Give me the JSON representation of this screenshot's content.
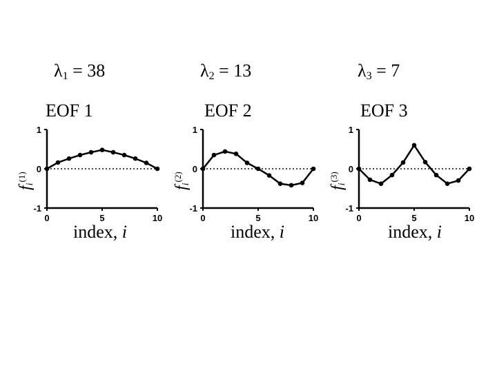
{
  "panels": [
    {
      "lambda_sym": "λ",
      "lambda_sub": "1",
      "lambda_rest": " = 38",
      "title": "EOF 1",
      "ylabel": {
        "f": "f",
        "i": "i",
        "sup": "(1)"
      },
      "xlabel": {
        "text": "index, ",
        "var": "i"
      }
    },
    {
      "lambda_sym": "λ",
      "lambda_sub": "2",
      "lambda_rest": " = 13",
      "title": "EOF 2",
      "ylabel": {
        "f": "f",
        "i": "i",
        "sup": "(2)"
      },
      "xlabel": {
        "text": "index, ",
        "var": "i"
      }
    },
    {
      "lambda_sym": "λ",
      "lambda_sub": "3",
      "lambda_rest": " = 7",
      "title": "EOF 3",
      "ylabel": {
        "f": "f",
        "i": "i",
        "sup": "(3)"
      },
      "xlabel": {
        "text": "index, ",
        "var": "i"
      }
    }
  ],
  "chart_data": [
    {
      "type": "line",
      "x": [
        0,
        1,
        2,
        3,
        4,
        5,
        6,
        7,
        8,
        9,
        10
      ],
      "y": [
        0.0,
        0.16,
        0.26,
        0.35,
        0.42,
        0.48,
        0.42,
        0.35,
        0.26,
        0.15,
        0.0
      ],
      "xlim": [
        0,
        10
      ],
      "ylim": [
        -1,
        1
      ],
      "xticks": [
        "0",
        "5",
        "10"
      ],
      "yticks": [
        "-1",
        "0",
        "1"
      ],
      "zero_line": "dotted"
    },
    {
      "type": "line",
      "x": [
        0,
        1,
        2,
        3,
        4,
        5,
        6,
        7,
        8,
        9,
        10
      ],
      "y": [
        0.0,
        0.35,
        0.44,
        0.38,
        0.15,
        0.0,
        -0.17,
        -0.38,
        -0.42,
        -0.36,
        0.0
      ],
      "xlim": [
        0,
        10
      ],
      "ylim": [
        -1,
        1
      ],
      "xticks": [
        "0",
        "5",
        "10"
      ],
      "yticks": [
        "-1",
        "0",
        "1"
      ],
      "zero_line": "dotted"
    },
    {
      "type": "line",
      "x": [
        0,
        1,
        2,
        3,
        4,
        5,
        6,
        7,
        8,
        9,
        10
      ],
      "y": [
        0.0,
        -0.28,
        -0.38,
        -0.16,
        0.16,
        0.6,
        0.17,
        -0.16,
        -0.38,
        -0.3,
        0.0
      ],
      "xlim": [
        0,
        10
      ],
      "ylim": [
        -1,
        1
      ],
      "xticks": [
        "0",
        "5",
        "10"
      ],
      "yticks": [
        "-1",
        "0",
        "1"
      ],
      "zero_line": "dotted"
    }
  ]
}
